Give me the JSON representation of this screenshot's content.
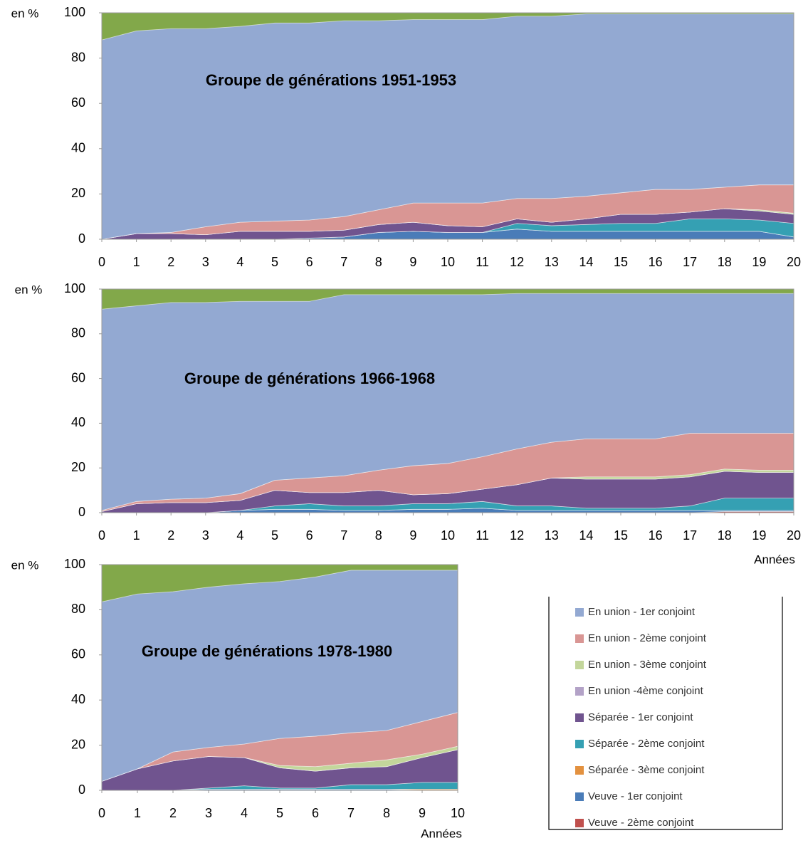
{
  "legend": [
    {
      "name": "En union - 1er conjoint",
      "color": "#93a9d2"
    },
    {
      "name": "En union - 2ème conjoint",
      "color": "#d99694"
    },
    {
      "name": "En union - 3ème conjoint",
      "color": "#c3d69b"
    },
    {
      "name": "En union -4ème conjoint",
      "color": "#b3a2c7"
    },
    {
      "name": "Séparée - 1er conjoint",
      "color": "#70548f"
    },
    {
      "name": "Séparée - 2ème conjoint",
      "color": "#35a0b3"
    },
    {
      "name": "Séparée - 3ème conjoint",
      "color": "#e3913f"
    },
    {
      "name": "Veuve - 1er conjoint",
      "color": "#4a7cb8"
    },
    {
      "name": "Veuve - 2ème conjoint",
      "color": "#c0504d"
    }
  ],
  "chart_data": [
    {
      "type": "stacked-area",
      "title": "Groupe de générations 1951-1953",
      "ylabel": "en %",
      "x": [
        0,
        1,
        2,
        3,
        4,
        5,
        6,
        7,
        8,
        9,
        10,
        11,
        12,
        13,
        14,
        15,
        16,
        17,
        18,
        19,
        20
      ],
      "xlim": [
        0,
        20
      ],
      "xticks": [
        0,
        1,
        2,
        3,
        4,
        5,
        6,
        7,
        8,
        9,
        10,
        11,
        12,
        13,
        14,
        15,
        16,
        17,
        18,
        19,
        20
      ],
      "ylim": [
        0,
        100
      ],
      "yticks": [
        0,
        20,
        40,
        60,
        80,
        100
      ],
      "series": [
        {
          "values": [
            88,
            89.5,
            90,
            87.5,
            86.5,
            87.5,
            87,
            86.5,
            83.5,
            81,
            81,
            81,
            80.5,
            80.5,
            80.5,
            79,
            77.5,
            77.5,
            76.5,
            75.5,
            75.5
          ]
        },
        {
          "values": [
            0,
            0,
            0.5,
            3.5,
            4,
            4.5,
            5,
            6,
            6.5,
            8.5,
            10,
            10.5,
            9,
            10.5,
            10,
            9.5,
            11,
            10,
            9.5,
            11,
            12.5
          ]
        },
        {
          "values": [
            0,
            0,
            0,
            0,
            0,
            0,
            0,
            0,
            0,
            0,
            0,
            0,
            0,
            0,
            0,
            0,
            0,
            0,
            0,
            0.5,
            0.5
          ]
        },
        {
          "values": [
            0,
            0,
            0,
            0,
            0,
            0,
            0,
            0,
            0,
            0,
            0,
            0,
            0,
            0,
            0,
            0,
            0,
            0,
            0,
            0,
            0
          ]
        },
        {
          "values": [
            0,
            2.5,
            2.5,
            2,
            3.5,
            3.5,
            3,
            3,
            3.5,
            4,
            3,
            2.5,
            2,
            1.5,
            2.5,
            4,
            4,
            3,
            4.5,
            4,
            4
          ]
        },
        {
          "values": [
            0,
            0,
            0,
            0,
            0,
            0,
            0,
            0,
            0,
            0,
            0,
            0,
            2.5,
            2.5,
            3,
            3.5,
            3.5,
            5.5,
            5.5,
            5,
            6
          ]
        },
        {
          "values": [
            0,
            0,
            0,
            0,
            0,
            0,
            0,
            0,
            0,
            0,
            0,
            0,
            0,
            0,
            0,
            0,
            0,
            0,
            0,
            0,
            0
          ]
        },
        {
          "values": [
            0,
            0,
            0,
            0,
            0,
            0,
            0.5,
            1,
            3,
            3.5,
            3,
            3,
            4.5,
            3.5,
            3.5,
            3.5,
            3.5,
            3.5,
            3.5,
            3.5,
            1
          ]
        },
        {
          "values": [
            0,
            0,
            0,
            0,
            0,
            0,
            0,
            0,
            0,
            0,
            0,
            0,
            0,
            0,
            0,
            0,
            0,
            0,
            0,
            0,
            0
          ]
        }
      ]
    },
    {
      "type": "stacked-area",
      "title": "Groupe de générations 1966-1968",
      "ylabel": "en %",
      "xlabel": "Années",
      "x": [
        0,
        1,
        2,
        3,
        4,
        5,
        6,
        7,
        8,
        9,
        10,
        11,
        12,
        13,
        14,
        15,
        16,
        17,
        18,
        19,
        20
      ],
      "xlim": [
        0,
        20
      ],
      "xticks": [
        0,
        1,
        2,
        3,
        4,
        5,
        6,
        7,
        8,
        9,
        10,
        11,
        12,
        13,
        14,
        15,
        16,
        17,
        18,
        19,
        20
      ],
      "ylim": [
        0,
        100
      ],
      "yticks": [
        0,
        20,
        40,
        60,
        80,
        100
      ],
      "series": [
        {
          "values": [
            90,
            87.5,
            88,
            87.5,
            86,
            80,
            79,
            81,
            78.5,
            76.5,
            75.5,
            72.5,
            69.5,
            66.5,
            65,
            65,
            65,
            62.5,
            62.5,
            62.5,
            62.5
          ]
        },
        {
          "values": [
            0.5,
            1,
            1.5,
            2,
            3,
            4.5,
            6.5,
            7.5,
            9,
            13,
            13.5,
            14.5,
            16,
            16,
            17,
            17,
            17,
            18.5,
            16,
            16.5,
            16.5
          ]
        },
        {
          "values": [
            0,
            0,
            0,
            0,
            0,
            0,
            0,
            0,
            0,
            0,
            0,
            0,
            0,
            0,
            1,
            1,
            1,
            1,
            1,
            1,
            1
          ]
        },
        {
          "values": [
            0,
            0,
            0,
            0,
            0,
            0,
            0,
            0,
            0,
            0,
            0,
            0,
            0,
            0,
            0,
            0,
            0,
            0,
            0,
            0,
            0
          ]
        },
        {
          "values": [
            0.5,
            4,
            4.5,
            4.5,
            4.5,
            7,
            5,
            6,
            7,
            4,
            4.5,
            5.5,
            9.5,
            12.5,
            13,
            13,
            13,
            13,
            12,
            11.5,
            11.5
          ]
        },
        {
          "values": [
            0,
            0,
            0,
            0,
            0,
            1.5,
            2.5,
            2,
            2,
            2.5,
            2.5,
            3,
            2,
            2,
            1,
            1,
            1,
            2,
            5.5,
            5.5,
            5.5
          ]
        },
        {
          "values": [
            0,
            0,
            0,
            0,
            0,
            0,
            0,
            0,
            0,
            0,
            0,
            0,
            0,
            0,
            0,
            0,
            0,
            0,
            0,
            0,
            0
          ]
        },
        {
          "values": [
            0,
            0,
            0,
            0,
            1,
            1.5,
            1.5,
            1,
            1,
            1.5,
            1.5,
            2,
            1,
            1,
            1,
            1,
            1,
            1,
            0.5,
            0.5,
            0.5
          ]
        },
        {
          "values": [
            0,
            0,
            0,
            0,
            0,
            0,
            0,
            0,
            0,
            0,
            0,
            0,
            0,
            0,
            0,
            0,
            0,
            0,
            0.5,
            0.5,
            0.5
          ]
        }
      ]
    },
    {
      "type": "stacked-area",
      "title": "Groupe de générations 1978-1980",
      "ylabel": "en %",
      "xlabel": "Années",
      "x": [
        0,
        1,
        2,
        3,
        4,
        5,
        6,
        7,
        8,
        9,
        10
      ],
      "xlim": [
        0,
        10
      ],
      "xticks": [
        0,
        1,
        2,
        3,
        4,
        5,
        6,
        7,
        8,
        9,
        10
      ],
      "ylim": [
        0,
        100
      ],
      "yticks": [
        0,
        20,
        40,
        60,
        80,
        100
      ],
      "series": [
        {
          "values": [
            79.5,
            77.5,
            71,
            71,
            71,
            69.5,
            70.5,
            72,
            71,
            67,
            63
          ]
        },
        {
          "values": [
            0,
            0,
            4,
            4,
            6,
            12,
            13.5,
            13.5,
            13,
            14.5,
            15
          ]
        },
        {
          "values": [
            0,
            0,
            0,
            0,
            0,
            1,
            2,
            2,
            3,
            1.5,
            1.5
          ]
        },
        {
          "values": [
            0,
            0,
            0,
            0,
            0,
            0,
            0,
            0,
            0,
            0,
            0
          ]
        },
        {
          "values": [
            4,
            9.5,
            13,
            14,
            12.5,
            9,
            7.5,
            7.5,
            8,
            11,
            14.5
          ]
        },
        {
          "values": [
            0,
            0,
            0,
            0.5,
            1.5,
            0.5,
            0.5,
            2,
            2,
            3,
            3
          ]
        },
        {
          "values": [
            0,
            0,
            0,
            0,
            0,
            0,
            0,
            0,
            0,
            0.5,
            0.5
          ]
        },
        {
          "values": [
            0,
            0,
            0,
            0.5,
            0.5,
            0.5,
            0.5,
            0.5,
            0.5,
            0,
            0
          ]
        },
        {
          "values": [
            0,
            0,
            0,
            0,
            0,
            0,
            0,
            0,
            0,
            0,
            0
          ]
        }
      ]
    }
  ]
}
